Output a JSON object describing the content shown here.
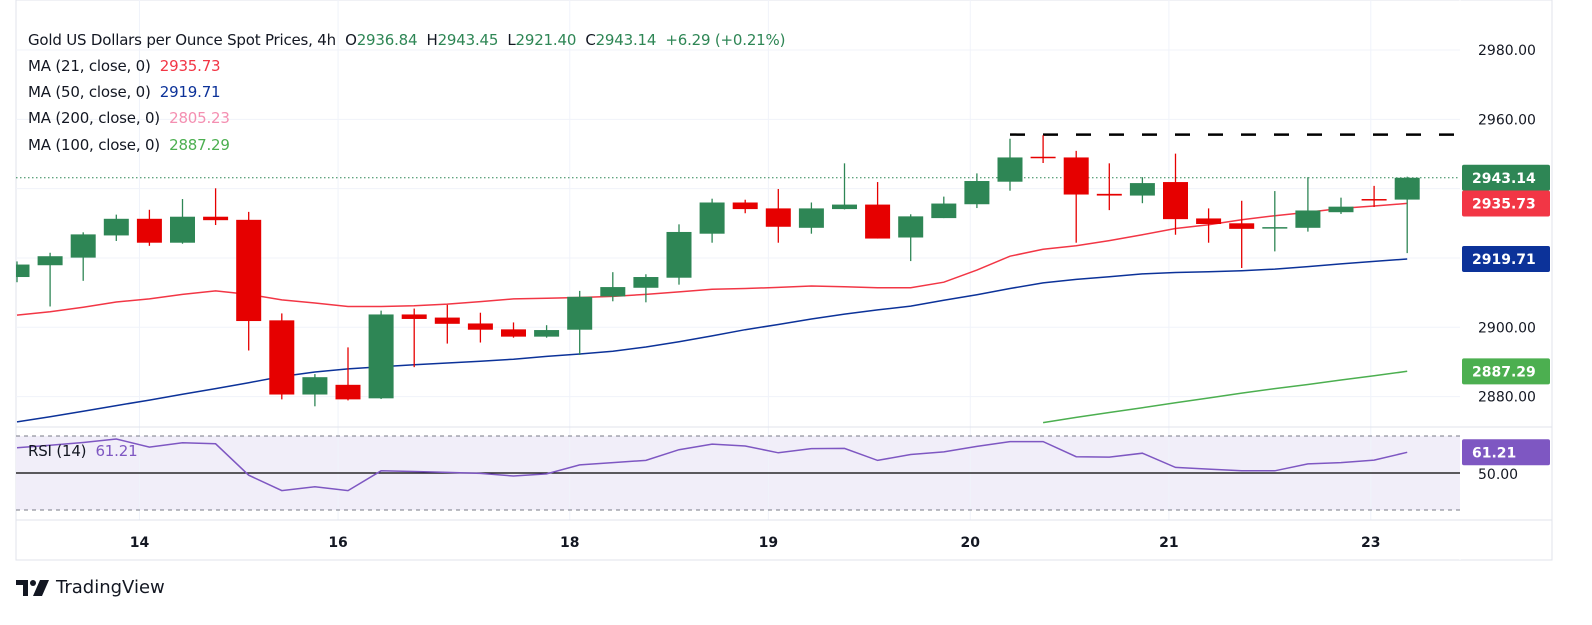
{
  "chart_data": {
    "type": "candlestick",
    "title": "Gold US Dollars per Ounce Spot Prices, 4h",
    "ohlc_header": {
      "open_label": "O",
      "open": "2936.84",
      "high_label": "H",
      "high": "2943.45",
      "low_label": "L",
      "low": "2921.40",
      "close_label": "C",
      "close": "2943.14",
      "change": "+6.29 (+0.21%)"
    },
    "indicators": [
      {
        "label": "MA (21, close, 0)",
        "value": "2935.73",
        "color": "#f23645"
      },
      {
        "label": "MA (50, close, 0)",
        "value": "2919.71",
        "color": "#0c3299"
      },
      {
        "label": "MA (200, close, 0)",
        "value": "2805.23",
        "color": "#f48fb1"
      },
      {
        "label": "MA (100, close, 0)",
        "value": "2887.29",
        "color": "#4caf50"
      }
    ],
    "candles": [
      [
        2914.5,
        2919.0,
        2913.0,
        2918.1
      ],
      [
        2917.9,
        2921.5,
        2906.0,
        2920.5
      ],
      [
        2920.1,
        2927.4,
        2913.4,
        2926.8
      ],
      [
        2926.5,
        2932.5,
        2924.9,
        2931.3
      ],
      [
        2931.3,
        2933.9,
        2923.5,
        2924.4
      ],
      [
        2924.4,
        2937.0,
        2924.1,
        2931.9
      ],
      [
        2931.9,
        2940.1,
        2929.5,
        2930.9
      ],
      [
        2931.0,
        2933.3,
        2893.3,
        2901.8
      ],
      [
        2902.0,
        2904.0,
        2879.2,
        2880.6
      ],
      [
        2880.6,
        2886.5,
        2877.2,
        2885.6
      ],
      [
        2883.4,
        2894.2,
        2878.9,
        2879.2
      ],
      [
        2879.5,
        2904.8,
        2879.3,
        2903.7
      ],
      [
        2903.7,
        2905.4,
        2888.5,
        2902.4
      ],
      [
        2902.8,
        2906.5,
        2895.3,
        2901.0
      ],
      [
        2901.1,
        2904.2,
        2895.6,
        2899.3
      ],
      [
        2899.4,
        2901.4,
        2897.0,
        2897.3
      ],
      [
        2897.3,
        2900.6,
        2897.0,
        2899.2
      ],
      [
        2899.3,
        2910.5,
        2892.0,
        2908.8
      ],
      [
        2908.9,
        2915.9,
        2907.5,
        2911.6
      ],
      [
        2911.4,
        2915.3,
        2907.2,
        2914.5
      ],
      [
        2914.3,
        2929.7,
        2912.3,
        2927.5
      ],
      [
        2927.0,
        2937.1,
        2924.4,
        2936.0
      ],
      [
        2936.0,
        2936.8,
        2932.9,
        2934.1
      ],
      [
        2934.3,
        2939.9,
        2924.4,
        2929.0
      ],
      [
        2928.7,
        2936.0,
        2927.0,
        2934.3
      ],
      [
        2934.1,
        2947.3,
        2934.0,
        2935.4
      ],
      [
        2935.4,
        2941.9,
        2925.6,
        2925.6
      ],
      [
        2925.9,
        2932.6,
        2919.1,
        2932.0
      ],
      [
        2931.5,
        2937.7,
        2931.5,
        2935.7
      ],
      [
        2935.5,
        2944.4,
        2934.4,
        2942.2
      ],
      [
        2942.0,
        2954.4,
        2939.4,
        2949.0
      ],
      [
        2949.2,
        2955.4,
        2947.4,
        2949.0
      ],
      [
        2949.0,
        2950.9,
        2924.4,
        2938.3
      ],
      [
        2938.5,
        2947.3,
        2933.8,
        2938.0
      ],
      [
        2938.0,
        2943.3,
        2935.8,
        2941.6
      ],
      [
        2941.9,
        2950.1,
        2926.7,
        2931.2
      ],
      [
        2931.4,
        2934.3,
        2924.4,
        2929.8
      ],
      [
        2930.0,
        2936.5,
        2917.1,
        2928.4
      ],
      [
        2928.8,
        2939.3,
        2921.9,
        2928.9
      ],
      [
        2928.7,
        2943.3,
        2927.6,
        2933.7
      ],
      [
        2933.2,
        2937.4,
        2932.7,
        2934.8
      ],
      [
        2937.0,
        2940.8,
        2934.7,
        2936.9
      ],
      [
        2936.84,
        2943.45,
        2921.4,
        2943.14
      ]
    ],
    "ma21": [
      2903.5,
      2904.5,
      2905.8,
      2907.3,
      2908.2,
      2909.5,
      2910.5,
      2909.5,
      2907.9,
      2907,
      2906,
      2906,
      2906.2,
      2906.7,
      2907.4,
      2908.2,
      2908.4,
      2908.6,
      2908.9,
      2909.5,
      2910.2,
      2911,
      2911.2,
      2911.5,
      2911.9,
      2911.7,
      2911.4,
      2911.4,
      2913,
      2916.5,
      2920.5,
      2922.5,
      2923.5,
      2925,
      2926.7,
      2928.5,
      2929.6,
      2931,
      2932.2,
      2933.2,
      2934.3,
      2935,
      2935.73
    ],
    "ma50": [
      2872.7,
      2874.2,
      2875.8,
      2877.4,
      2879,
      2880.7,
      2882.3,
      2884,
      2885.8,
      2887.1,
      2888,
      2888.6,
      2889.2,
      2889.7,
      2890.2,
      2890.8,
      2891.6,
      2892.3,
      2893.1,
      2894.3,
      2895.8,
      2897.5,
      2899.3,
      2900.8,
      2902.4,
      2903.8,
      2905,
      2906.1,
      2907.8,
      2909.4,
      2911.2,
      2912.8,
      2913.8,
      2914.6,
      2915.4,
      2915.8,
      2916,
      2916.3,
      2916.8,
      2917.5,
      2918.3,
      2919,
      2919.71
    ],
    "ma100_from_bar": 31,
    "ma100": [
      2872.5,
      2874,
      2875.4,
      2876.8,
      2878.2,
      2879.6,
      2881,
      2882.3,
      2883.5,
      2884.8,
      2886,
      2887.29
    ],
    "resistance_level": 2955.6,
    "resistance_from_bar": 30,
    "last_price_line": 2943.14,
    "y_ticks": [
      "2980.00",
      "2960.00",
      "2900.00",
      "2880.00"
    ],
    "y_grid": [
      2980,
      2960,
      2940,
      2920,
      2900,
      2880
    ],
    "ylim": [
      2871,
      2994
    ],
    "price_badges": [
      {
        "value": "2943.14",
        "color": "#2e8655"
      },
      {
        "value": "2935.73",
        "color": "#f23645"
      },
      {
        "value": "2919.71",
        "color": "#0c3299"
      },
      {
        "value": "2887.29",
        "color": "#4caf50"
      }
    ],
    "x_ticks": [
      {
        "label": "14",
        "at_bar": 3.7
      },
      {
        "label": "16",
        "at_bar": 9.7
      },
      {
        "label": "18",
        "at_bar": 16.7
      },
      {
        "label": "19",
        "at_bar": 22.7
      },
      {
        "label": "20",
        "at_bar": 28.8
      },
      {
        "label": "21",
        "at_bar": 34.8
      },
      {
        "label": "23",
        "at_bar": 40.9
      }
    ],
    "rsi": {
      "label": "RSI (14)",
      "value": "61.21",
      "color": "#7e57c2",
      "upper": 70,
      "middle": 50,
      "lower": 30,
      "middle_label": "50.00",
      "values": [
        63.7,
        65,
        66.5,
        68.4,
        64,
        66.3,
        65.8,
        48.8,
        40.5,
        42.6,
        40.5,
        51.2,
        50.8,
        50.3,
        49.8,
        48.4,
        49.5,
        54.4,
        55.6,
        56.8,
        62.6,
        65.6,
        64.6,
        60.9,
        63.2,
        63.3,
        56.8,
        60,
        61.4,
        64.4,
        67,
        67,
        58.8,
        58.6,
        60.7,
        53,
        52.1,
        51.2,
        51.2,
        54.9,
        55.6,
        57,
        61.21
      ]
    },
    "colors": {
      "up": "#2e8655",
      "down": "#e60000"
    }
  },
  "footer": {
    "brand": "TradingView"
  }
}
